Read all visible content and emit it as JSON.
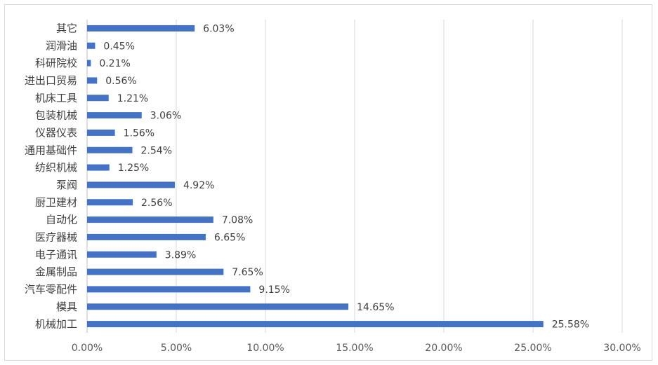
{
  "chart_data": {
    "type": "bar",
    "orientation": "horizontal",
    "categories": [
      "机械加工",
      "模具",
      "汽车零配件",
      "金属制品",
      "电子通讯",
      "医疗器械",
      "自动化",
      "厨卫建材",
      "泵阀",
      "纺织机械",
      "通用基础件",
      "仪器仪表",
      "包装机械",
      "机床工具",
      "进出口贸易",
      "科研院校",
      "润滑油",
      "其它"
    ],
    "values": [
      25.58,
      14.65,
      9.15,
      7.65,
      3.89,
      6.65,
      7.08,
      2.56,
      4.92,
      1.25,
      2.54,
      1.56,
      3.06,
      1.21,
      0.56,
      0.21,
      0.45,
      6.03
    ],
    "value_labels": [
      "25.58%",
      "14.65%",
      "9.15%",
      "7.65%",
      "3.89%",
      "6.65%",
      "7.08%",
      "2.56%",
      "4.92%",
      "1.25%",
      "2.54%",
      "1.56%",
      "3.06%",
      "1.21%",
      "0.56%",
      "0.21%",
      "0.45%",
      "6.03%"
    ],
    "xlim": [
      0,
      30
    ],
    "x_ticks": [
      0,
      5,
      10,
      15,
      20,
      25,
      30
    ],
    "x_tick_labels": [
      "0.00%",
      "5.00%",
      "10.00%",
      "15.00%",
      "20.00%",
      "25.00%",
      "30.00%"
    ],
    "title": "",
    "xlabel": "",
    "ylabel": "",
    "grid": "vertical",
    "legend": "none",
    "bar_color": "#4472c4",
    "grid_color": "#d9d9d9"
  }
}
